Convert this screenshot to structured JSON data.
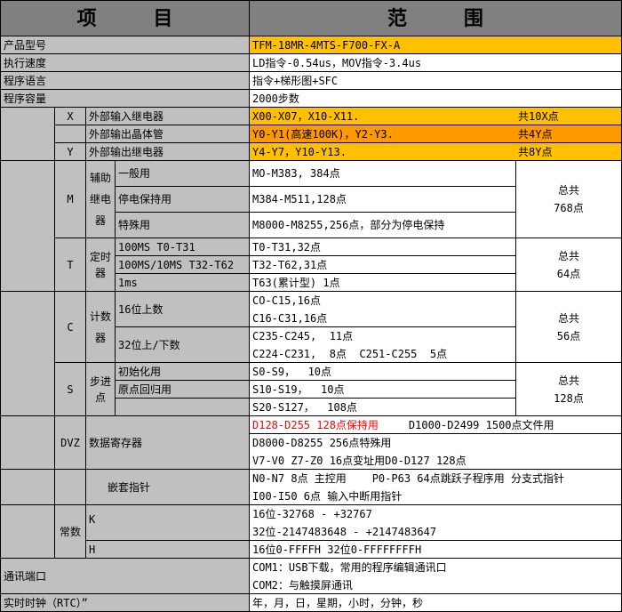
{
  "header": {
    "item": "项 目",
    "range": "范 围"
  },
  "colors": {
    "header": "#808080",
    "label_bg": "#c0c0c0",
    "highlight": "#ffc000",
    "highlight_dark": "#ff9900",
    "warning_text": "#ff0000"
  },
  "rows": {
    "model": {
      "label": "产品型号",
      "value": "TFM-18MR-4MTS-F700-FX-A"
    },
    "speed": {
      "label": "执行速度",
      "value": "LD指令-0.54us，MOV指令-3.4us"
    },
    "language": {
      "label": "程序语言",
      "value": "指令+梯形图+SFC"
    },
    "capacity": {
      "label": "程序容量",
      "value": "2000步数"
    },
    "x_input": {
      "code": "X",
      "label": "外部输入继电器",
      "value": "X00-X07，X10-X11.",
      "total": "共10X点"
    },
    "y_transistor": {
      "label": "外部输出晶体管",
      "value": "Y0-Y1(高速100K)，Y2-Y3.",
      "total": "共4Y点"
    },
    "y_relay": {
      "code": "Y",
      "label": "外部输出继电器",
      "value": "Y4-Y7，Y10-Y13.",
      "total": "共8Y点"
    }
  },
  "m": {
    "code": "M",
    "group": "辅助继电器",
    "total": "总共\n768点",
    "items": [
      {
        "label": "一般用",
        "value": "MO-M383, 384点"
      },
      {
        "label": "停电保持用",
        "value": "M384-M511,128点"
      },
      {
        "label": "特殊用",
        "value": "M8000-M8255,256点，部分为停电保持"
      }
    ]
  },
  "t": {
    "code": "T",
    "group": "定时器",
    "total": "总共\n64点",
    "items": [
      {
        "label": "100MS T0-T31",
        "value": "T0-T31,32点"
      },
      {
        "label": "100MS/10MS T32-T62",
        "value": "T32-T62,31点"
      },
      {
        "label": "1ms",
        "value": "T63(累计型) 1点"
      }
    ]
  },
  "c": {
    "code": "C",
    "group": "计数器",
    "total": "总共\n56点",
    "items": [
      {
        "label": "16位上数",
        "lines": [
          "CO-C15,16点",
          "C16-C31,16点"
        ]
      },
      {
        "label": "32位上/下数",
        "lines": [
          "C235-C245,  11点",
          "C224-C231,  8点  C251-C255  5点"
        ]
      }
    ]
  },
  "s": {
    "code": "S",
    "group": "步进点",
    "total": "总共\n128点",
    "items": [
      {
        "label": "初始化用",
        "value": "S0-S9，  10点"
      },
      {
        "label": "原点回归用",
        "value": "S10-S19，  10点"
      },
      {
        "label": "",
        "value": "S20-S127，  108点"
      }
    ]
  },
  "d": {
    "code": "DVZ",
    "label": "数据寄存器",
    "line1_red": "D128-D255 128点保持用",
    "line1_rest": "D1000-D2499 1500点文件用",
    "line2": "D8000-D8255 256点特殊用",
    "line3": "V7-V0 Z7-Z0 16点变址用D0-D127 128点"
  },
  "nest": {
    "label": "嵌套指针",
    "line1": "N0-N7 8点 主控用    P0-P63 64点跳跃子程序用 分支式指针",
    "line2": "I00-I50 6点 输入中断用指针"
  },
  "const": {
    "label": "常数",
    "k": {
      "label": "K",
      "line1": "16位-32768 - +32767",
      "line2": "32位-2147483648 - +2147483647"
    },
    "h": {
      "label": "H",
      "line1": "16位0-FFFFH 32位0-FFFFFFFFH"
    }
  },
  "comm": {
    "label": "通讯端口",
    "line1": "COM1：USB下载，常用的程序编辑通讯口",
    "line2": "COM2：与触摸屏通讯"
  },
  "rtc": {
    "label": "实时时钟（RTC）”",
    "value": "年，月，日，星期，小时，分钟，秒"
  }
}
